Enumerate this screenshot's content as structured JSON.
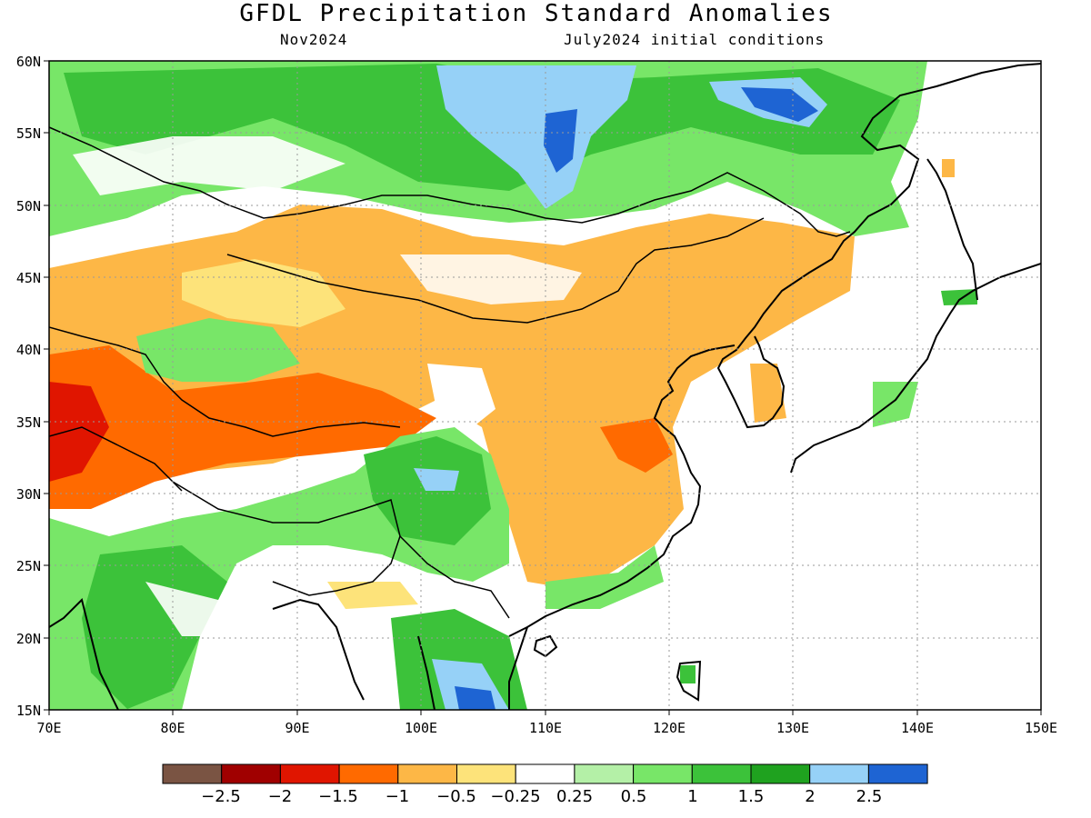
{
  "title": "GFDL Precipitation Standard Anomalies",
  "valid_month": "Nov2024",
  "init_label": "July2024 initial conditions",
  "lat_labels": [
    "60N",
    "55N",
    "50N",
    "45N",
    "40N",
    "35N",
    "30N",
    "25N",
    "20N",
    "15N"
  ],
  "lon_labels": [
    "70E",
    "80E",
    "90E",
    "100E",
    "110E",
    "120E",
    "130E",
    "140E",
    "150E"
  ],
  "colorbar": {
    "labels": [
      "−2.5",
      "−2",
      "−1.5",
      "−1",
      "−0.5",
      "−0.25",
      "0.25",
      "0.5",
      "1",
      "1.5",
      "2",
      "2.5"
    ],
    "colors": [
      "#7a5443",
      "#a00000",
      "#e01500",
      "#ff6a00",
      "#fdb746",
      "#fde37a",
      "#ffffff",
      "#b4f0a7",
      "#78e668",
      "#3cc23a",
      "#1fa21f",
      "#96d1f7",
      "#1e64d3"
    ]
  },
  "map": {
    "projection": "lat-lon",
    "lon_range": [
      70,
      150
    ],
    "lat_range": [
      15,
      60
    ],
    "background_color": "#ffffff",
    "coastline_color": "#000000"
  }
}
